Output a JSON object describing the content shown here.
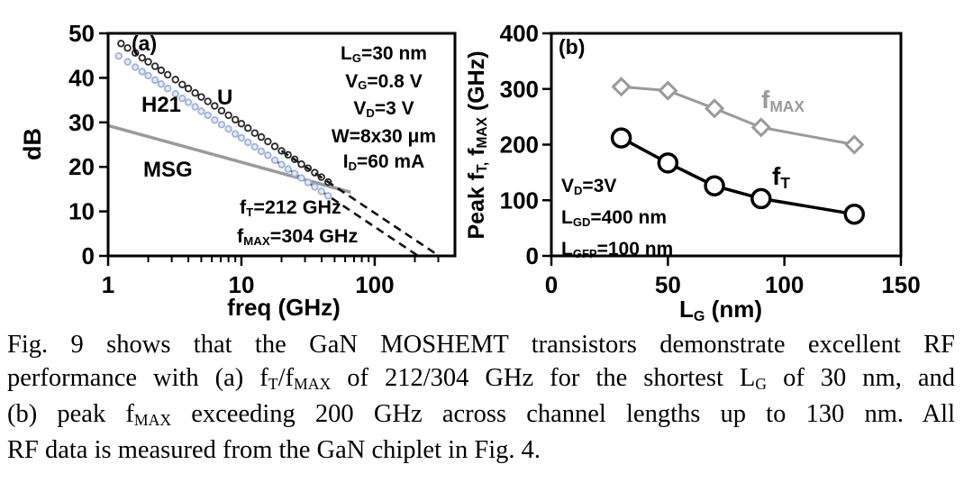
{
  "colors": {
    "axis_black": "#000000",
    "u_marker": "#26262c",
    "h21_stroke": "#9fb2dc",
    "h21_fill": "#e4eaf6",
    "msg_gray": "#9a9a9a",
    "fmax_gray": "#9a9a9a",
    "ft_black": "#000000",
    "dash_black": "#111111"
  },
  "figure": {
    "panel_a": {
      "label": "(a)",
      "y_title": "dB",
      "x_title": "freq (GHz)",
      "series_labels": {
        "h21": "H21",
        "u": "U",
        "msg": "MSG"
      },
      "bias_lines": [
        [
          {
            "t": "L"
          },
          {
            "t": "G",
            "s": 1
          },
          {
            "t": "=30 nm"
          }
        ],
        [
          {
            "t": "V"
          },
          {
            "t": "G",
            "s": 1
          },
          {
            "t": "=0.8 V"
          }
        ],
        [
          {
            "t": "V"
          },
          {
            "t": "D",
            "s": 1
          },
          {
            "t": "=3 V"
          }
        ],
        [
          {
            "t": "W=8x30 μm"
          }
        ],
        [
          {
            "t": "I"
          },
          {
            "t": "D",
            "s": 1
          },
          {
            "t": "=60 mA"
          }
        ]
      ],
      "ft_annotation": [
        {
          "t": "f"
        },
        {
          "t": "T",
          "s": 1
        },
        {
          "t": "=212 GHz"
        }
      ],
      "fmax_annotation": [
        {
          "t": "f"
        },
        {
          "t": "MAX",
          "s": 1
        },
        {
          "t": "=304 GHz"
        }
      ]
    },
    "panel_b": {
      "label": "(b)",
      "y_title_rich": [
        {
          "t": "Peak f"
        },
        {
          "t": "T,",
          "s": 1
        },
        {
          "t": " f"
        },
        {
          "t": "MAX",
          "s": 1
        },
        {
          "t": " (GHz)"
        }
      ],
      "x_title_rich": [
        {
          "t": "L"
        },
        {
          "t": "G",
          "s": 1
        },
        {
          "t": " (nm)"
        }
      ],
      "bias_lines": [
        [
          {
            "t": "V"
          },
          {
            "t": "D",
            "s": 1
          },
          {
            "t": "=3V"
          }
        ],
        [
          {
            "t": "L"
          },
          {
            "t": "GD",
            "s": 1
          },
          {
            "t": "=400 nm"
          }
        ],
        [
          {
            "t": "L"
          },
          {
            "t": "GFP",
            "s": 1
          },
          {
            "t": "=100 nm"
          }
        ]
      ],
      "fmax_series_label": [
        {
          "t": "f"
        },
        {
          "t": "MAX",
          "s": 1
        }
      ],
      "ft_series_label": [
        {
          "t": "f"
        },
        {
          "t": "T",
          "s": 1
        }
      ]
    }
  },
  "caption": {
    "lines": [
      [
        {
          "t": "Fig. 9 shows that the GaN MOSHEMT transistors demonstrate excellent RF"
        }
      ],
      [
        {
          "t": "performance with (a) f"
        },
        {
          "t": "T",
          "s": 1
        },
        {
          "t": "/f"
        },
        {
          "t": "MAX",
          "s": 1
        },
        {
          "t": " of 212/304 GHz for the shortest L"
        },
        {
          "t": "G",
          "s": 1
        },
        {
          "t": " of 30 nm, and"
        }
      ],
      [
        {
          "t": "(b) peak f"
        },
        {
          "t": "MAX",
          "s": 1
        },
        {
          "t": " exceeding 200 GHz across channel lengths up to 130 nm.  All"
        }
      ],
      [
        {
          "t": "RF data is measured from the GaN chiplet in Fig. 4."
        }
      ]
    ]
  },
  "chart_data": [
    {
      "type": "scatter",
      "panel": "(a)",
      "xlabel": "freq (GHz)",
      "ylabel": "dB",
      "x_scale": "log",
      "xlim": [
        1,
        400
      ],
      "ylim": [
        0,
        50
      ],
      "x_major_ticks": [
        1,
        10,
        100
      ],
      "y_ticks": [
        0,
        10,
        20,
        30,
        40,
        50
      ],
      "grid": false,
      "annotations": [
        "LG=30 nm",
        "VG=0.8 V",
        "VD=3 V",
        "W=8x30 μm",
        "ID=60 mA",
        "fT=212 GHz",
        "fMAX=304 GHz"
      ],
      "series": [
        {
          "name": "MSG",
          "style": "line",
          "color": "#9a9a9a",
          "width": 3.5,
          "x": [
            1.02,
            66
          ],
          "y": [
            29.2,
            14.3
          ]
        },
        {
          "name": "fT extrapolation (-20 dB/dec to 212 GHz)",
          "style": "dashed",
          "color": "#111111",
          "width": 2.6,
          "x": [
            18,
            212
          ],
          "y": [
            21.4,
            0
          ]
        },
        {
          "name": "fMAX extrapolation (-20 dB/dec to 304 GHz)",
          "style": "dashed",
          "color": "#111111",
          "width": 2.6,
          "x": [
            20,
            304
          ],
          "y": [
            23.6,
            0
          ]
        },
        {
          "name": "H21",
          "style": "scatter",
          "color": "#9fb2dc",
          "fill": "#e4eaf6",
          "x": [
            1.2,
            1.4,
            1.6,
            1.8,
            2,
            2.25,
            2.5,
            2.8,
            3.2,
            3.6,
            4,
            4.5,
            5,
            5.6,
            6.3,
            7.1,
            8,
            9,
            10,
            11.2,
            12.6,
            14.1,
            15.8,
            17.8,
            20,
            22.4,
            25.1,
            28.2,
            31.6,
            35.5,
            39.8,
            44.7
          ],
          "y": [
            44.9,
            43.6,
            42.4,
            41.4,
            40.5,
            39.5,
            38.6,
            37.6,
            36.4,
            35.4,
            34.5,
            33.5,
            32.5,
            31.6,
            30.5,
            29.5,
            28.5,
            27.4,
            26.5,
            25.5,
            24.5,
            23.5,
            22.6,
            21.5,
            20.5,
            19.5,
            18.5,
            17.5,
            16.5,
            15.5,
            14.5,
            13.5
          ]
        },
        {
          "name": "U",
          "style": "scatter",
          "color": "#26262c",
          "fill": "none",
          "x": [
            1.25,
            1.4,
            1.6,
            1.8,
            2,
            2.25,
            2.5,
            2.8,
            3.2,
            3.6,
            4,
            4.5,
            5,
            5.6,
            6.3,
            7.1,
            8,
            9,
            10,
            11.2,
            12.6,
            14.1,
            15.8,
            17.8,
            20,
            22.4,
            25.1,
            28.2,
            31.6,
            35.5,
            39.8,
            44.7
          ],
          "y": [
            47.7,
            46.7,
            45.6,
            44.5,
            43.6,
            42.6,
            41.7,
            40.7,
            39.6,
            38.5,
            37.6,
            36.6,
            35.7,
            34.7,
            33.7,
            32.6,
            31.6,
            30.6,
            29.7,
            28.7,
            27.6,
            26.7,
            25.7,
            24.6,
            23.6,
            22.7,
            21.7,
            20.6,
            19.7,
            18.7,
            17.7,
            16.6
          ]
        }
      ]
    },
    {
      "type": "line",
      "panel": "(b)",
      "xlabel": "LG (nm)",
      "ylabel": "Peak fT, fMAX (GHz)",
      "xlim": [
        0,
        150
      ],
      "ylim": [
        0,
        400
      ],
      "x_ticks": [
        0,
        50,
        100,
        150
      ],
      "y_ticks": [
        0,
        100,
        200,
        300,
        400
      ],
      "grid": false,
      "annotations": [
        "VD=3V",
        "LGD=400 nm",
        "LGFP=100 nm"
      ],
      "series": [
        {
          "name": "fMAX",
          "marker": "diamond",
          "color": "#9a9a9a",
          "width": 3,
          "x": [
            30,
            50,
            70,
            90,
            130
          ],
          "y": [
            304,
            297,
            265,
            231,
            200
          ]
        },
        {
          "name": "fT",
          "marker": "circle",
          "color": "#000000",
          "width": 3.5,
          "x": [
            30,
            50,
            70,
            90,
            130
          ],
          "y": [
            212,
            167,
            126,
            103,
            75
          ]
        }
      ]
    }
  ]
}
